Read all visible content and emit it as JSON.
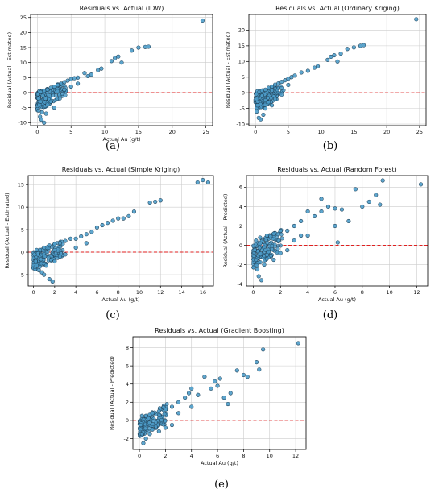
{
  "chart_data": [
    {
      "type": "scatter",
      "panel_label": "(a)",
      "title": "Residuals vs. Actual (IDW)",
      "xlabel": "Actual Au (g/t)",
      "ylabel": "Residual (Actual - Estimated)",
      "xlim": [
        -1,
        26
      ],
      "ylim": [
        -11,
        26
      ],
      "xticks": [
        0,
        5,
        10,
        15,
        20,
        25
      ],
      "yticks": [
        -10,
        -5,
        0,
        5,
        10,
        15,
        20,
        25
      ],
      "grid": true,
      "reference_line_y": 0,
      "points": [
        [
          0.1,
          -0.5
        ],
        [
          0.2,
          -2
        ],
        [
          0.3,
          -4
        ],
        [
          0.2,
          -6
        ],
        [
          0.4,
          -8
        ],
        [
          0.6,
          -9
        ],
        [
          1.0,
          -10
        ],
        [
          0.5,
          -3
        ],
        [
          0.8,
          -1
        ],
        [
          1.2,
          -2
        ],
        [
          1.5,
          -4
        ],
        [
          2.0,
          -3
        ],
        [
          2.5,
          -5
        ],
        [
          1.8,
          -1
        ],
        [
          0.3,
          0.5
        ],
        [
          0.5,
          0.2
        ],
        [
          1.0,
          0.6
        ],
        [
          1.5,
          1.0
        ],
        [
          2.0,
          1.6
        ],
        [
          2.5,
          2.0
        ],
        [
          3.0,
          2.5
        ],
        [
          3.5,
          3.0
        ],
        [
          4.0,
          3.5
        ],
        [
          4.5,
          4.0
        ],
        [
          5.0,
          4.5
        ],
        [
          5.5,
          4.8
        ],
        [
          6.0,
          5.0
        ],
        [
          7.0,
          6.5
        ],
        [
          7.5,
          5.5
        ],
        [
          8.0,
          6.0
        ],
        [
          9.0,
          7.5
        ],
        [
          9.5,
          8.0
        ],
        [
          4.0,
          1.0
        ],
        [
          3.0,
          0.5
        ],
        [
          5.0,
          2.0
        ],
        [
          6.0,
          3.0
        ],
        [
          0.7,
          -6.5
        ],
        [
          1.3,
          -7
        ],
        [
          11.0,
          10.5
        ],
        [
          11.5,
          11.5
        ],
        [
          12.0,
          12.0
        ],
        [
          12.5,
          10.0
        ],
        [
          14.0,
          14.0
        ],
        [
          15.0,
          15.0
        ],
        [
          16.0,
          15.2
        ],
        [
          16.5,
          15.3
        ],
        [
          24.5,
          24.0
        ]
      ]
    },
    {
      "type": "scatter",
      "panel_label": "(b)",
      "title": "Residuals vs. Actual (Ordinary Kriging)",
      "xlabel": "",
      "ylabel": "Residual (Actual - Estimated)",
      "xlim": [
        -1,
        26
      ],
      "ylim": [
        -10.5,
        25
      ],
      "xticks": [
        0,
        5,
        10,
        15,
        20,
        25
      ],
      "yticks": [
        -10,
        -5,
        0,
        5,
        10,
        15,
        20
      ],
      "grid": true,
      "reference_line_y": 0,
      "points": [
        [
          0.1,
          -0.5
        ],
        [
          0.2,
          -2
        ],
        [
          0.3,
          -4
        ],
        [
          0.2,
          -6
        ],
        [
          0.5,
          -8
        ],
        [
          0.8,
          -8.5
        ],
        [
          1.2,
          -7
        ],
        [
          1.5,
          -5
        ],
        [
          2.0,
          -3
        ],
        [
          2.5,
          -4
        ],
        [
          3.0,
          -2
        ],
        [
          1.0,
          -1
        ],
        [
          0.3,
          0.5
        ],
        [
          0.6,
          0.3
        ],
        [
          1.0,
          0.7
        ],
        [
          1.5,
          1.0
        ],
        [
          2.0,
          1.6
        ],
        [
          2.5,
          2.0
        ],
        [
          3.0,
          2.6
        ],
        [
          3.5,
          3.0
        ],
        [
          4.0,
          3.5
        ],
        [
          4.5,
          4.0
        ],
        [
          5.0,
          4.5
        ],
        [
          5.5,
          5.0
        ],
        [
          6.0,
          5.5
        ],
        [
          7.0,
          6.5
        ],
        [
          8.0,
          7.0
        ],
        [
          9.0,
          8.0
        ],
        [
          9.5,
          8.5
        ],
        [
          4.0,
          1.5
        ],
        [
          5.0,
          2.5
        ],
        [
          11.0,
          10.5
        ],
        [
          11.5,
          11.5
        ],
        [
          12.0,
          12.0
        ],
        [
          12.5,
          10.0
        ],
        [
          13.0,
          12.5
        ],
        [
          14.0,
          14.0
        ],
        [
          15.0,
          14.5
        ],
        [
          16.0,
          15.0
        ],
        [
          16.5,
          15.2
        ],
        [
          24.5,
          23.5
        ]
      ]
    },
    {
      "type": "scatter",
      "panel_label": "(c)",
      "title": "Residuals vs. Actual (Simple Kriging)",
      "xlabel": "Actual Au (g/t)",
      "ylabel": "Residual (Actual - Estimated)",
      "xlim": [
        -0.5,
        17
      ],
      "ylim": [
        -7.5,
        17
      ],
      "xticks": [
        0,
        2,
        4,
        6,
        8,
        10,
        12,
        14,
        16
      ],
      "yticks": [
        -5,
        0,
        5,
        10,
        15
      ],
      "grid": true,
      "reference_line_y": 0,
      "points": [
        [
          0.1,
          -0.5
        ],
        [
          0.2,
          -2
        ],
        [
          0.3,
          -3
        ],
        [
          0.5,
          -4
        ],
        [
          0.8,
          -4.5
        ],
        [
          1.0,
          -5
        ],
        [
          1.5,
          -6
        ],
        [
          1.8,
          -6.5
        ],
        [
          1.2,
          -3
        ],
        [
          2.0,
          -2
        ],
        [
          2.5,
          -1
        ],
        [
          3.0,
          -0.5
        ],
        [
          0.3,
          0.5
        ],
        [
          0.6,
          0.5
        ],
        [
          1.0,
          1.0
        ],
        [
          1.5,
          1.5
        ],
        [
          2.0,
          1.8
        ],
        [
          2.5,
          2.0
        ],
        [
          3.0,
          2.5
        ],
        [
          3.5,
          3.0
        ],
        [
          4.0,
          3.0
        ],
        [
          4.5,
          3.5
        ],
        [
          5.0,
          4.0
        ],
        [
          5.5,
          4.5
        ],
        [
          6.0,
          5.5
        ],
        [
          6.5,
          6.0
        ],
        [
          7.0,
          6.5
        ],
        [
          7.5,
          7.0
        ],
        [
          8.0,
          7.5
        ],
        [
          8.5,
          7.5
        ],
        [
          9.0,
          8.0
        ],
        [
          9.5,
          9.0
        ],
        [
          4.0,
          1.0
        ],
        [
          5.0,
          2.0
        ],
        [
          11.0,
          11.0
        ],
        [
          11.5,
          11.2
        ],
        [
          12.0,
          11.5
        ],
        [
          15.5,
          15.5
        ],
        [
          16.0,
          16.0
        ],
        [
          16.5,
          15.5
        ]
      ]
    },
    {
      "type": "scatter",
      "panel_label": "(d)",
      "title": "Residuals vs. Actual (Random Forest)",
      "xlabel": "Actual Au (g/t)",
      "ylabel": "Residual (Actual - Predicted)",
      "xlim": [
        -0.5,
        12.8
      ],
      "ylim": [
        -4.2,
        7.2
      ],
      "xticks": [
        0,
        2,
        4,
        6,
        8,
        10,
        12
      ],
      "yticks": [
        -4,
        -2,
        0,
        2,
        4,
        6
      ],
      "grid": true,
      "reference_line_y": 0,
      "points": [
        [
          0.1,
          -0.5
        ],
        [
          0.2,
          -1.5
        ],
        [
          0.3,
          -2.5
        ],
        [
          0.4,
          -3.2
        ],
        [
          0.6,
          -3.6
        ],
        [
          0.8,
          -2.0
        ],
        [
          1.0,
          -1.0
        ],
        [
          1.5,
          -1.5
        ],
        [
          2.0,
          -0.8
        ],
        [
          2.5,
          -0.5
        ],
        [
          0.2,
          0.5
        ],
        [
          0.5,
          0.8
        ],
        [
          1.0,
          1.0
        ],
        [
          1.5,
          1.2
        ],
        [
          2.0,
          1.5
        ],
        [
          2.5,
          1.5
        ],
        [
          3.0,
          2.0
        ],
        [
          3.5,
          2.5
        ],
        [
          4.0,
          3.5
        ],
        [
          4.0,
          1.0
        ],
        [
          4.5,
          3.0
        ],
        [
          5.0,
          3.5
        ],
        [
          5.5,
          4.0
        ],
        [
          5.0,
          4.8
        ],
        [
          6.0,
          2.0
        ],
        [
          6.0,
          3.8
        ],
        [
          6.5,
          3.7
        ],
        [
          6.2,
          0.3
        ],
        [
          7.0,
          2.5
        ],
        [
          7.5,
          5.8
        ],
        [
          8.0,
          4.0
        ],
        [
          8.5,
          4.5
        ],
        [
          9.0,
          5.2
        ],
        [
          9.3,
          4.2
        ],
        [
          9.5,
          6.7
        ],
        [
          12.3,
          6.3
        ],
        [
          3.0,
          0.5
        ],
        [
          3.5,
          1.0
        ]
      ]
    },
    {
      "type": "scatter",
      "panel_label": "(e)",
      "title": "Residuals vs. Actual (Gradient Boosting)",
      "xlabel": "Actual Au (g/t)",
      "ylabel": "Residual (Actual - Predicted)",
      "xlim": [
        -0.5,
        12.8
      ],
      "ylim": [
        -3.2,
        9.2
      ],
      "xticks": [
        0,
        2,
        4,
        6,
        8,
        10,
        12
      ],
      "yticks": [
        -2,
        0,
        2,
        4,
        6,
        8
      ],
      "grid": true,
      "reference_line_y": 0,
      "points": [
        [
          0.1,
          -0.5
        ],
        [
          0.2,
          -1.5
        ],
        [
          0.3,
          -2.5
        ],
        [
          0.5,
          -2.0
        ],
        [
          0.8,
          -1.5
        ],
        [
          1.0,
          -1.0
        ],
        [
          1.5,
          -1.2
        ],
        [
          2.0,
          -0.8
        ],
        [
          2.5,
          -0.5
        ],
        [
          0.2,
          0.5
        ],
        [
          0.5,
          0.5
        ],
        [
          1.0,
          0.8
        ],
        [
          1.5,
          1.0
        ],
        [
          2.0,
          1.2
        ],
        [
          2.5,
          1.5
        ],
        [
          3.0,
          2.0
        ],
        [
          3.5,
          2.5
        ],
        [
          4.0,
          3.5
        ],
        [
          3.8,
          3.0
        ],
        [
          4.5,
          2.8
        ],
        [
          5.0,
          4.8
        ],
        [
          5.5,
          3.5
        ],
        [
          5.8,
          4.3
        ],
        [
          6.0,
          3.8
        ],
        [
          6.2,
          4.6
        ],
        [
          6.5,
          2.5
        ],
        [
          6.8,
          1.8
        ],
        [
          7.0,
          3.0
        ],
        [
          7.5,
          5.5
        ],
        [
          8.0,
          5.0
        ],
        [
          8.3,
          4.8
        ],
        [
          9.0,
          6.4
        ],
        [
          9.2,
          5.6
        ],
        [
          9.5,
          7.8
        ],
        [
          12.2,
          8.5
        ],
        [
          3.0,
          0.8
        ],
        [
          4.0,
          1.5
        ]
      ]
    }
  ],
  "colors": {
    "marker_fill": "#4d9cc9",
    "marker_edge": "#1f3f55",
    "zero_line": "#e02020",
    "grid": "#cccccc"
  }
}
